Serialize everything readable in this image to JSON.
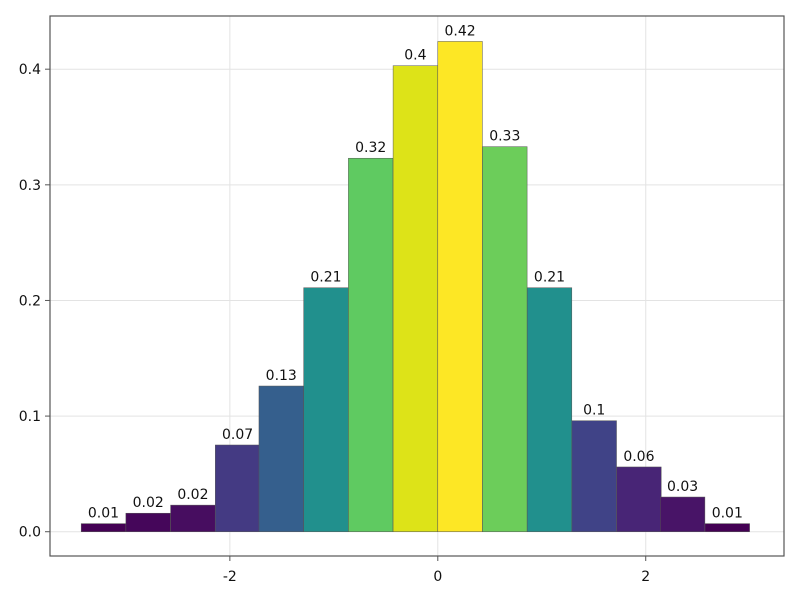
{
  "chart_data": {
    "type": "bar",
    "title": "",
    "xlabel": "",
    "ylabel": "",
    "xlim": [
      -3.73,
      3.33
    ],
    "ylim": [
      -0.021,
      0.446
    ],
    "grid": true,
    "x_ticks": [
      -2,
      0,
      2
    ],
    "y_ticks": [
      0.0,
      0.1,
      0.2,
      0.3,
      0.4
    ],
    "x_tick_labels": [
      "-2",
      "0",
      "2"
    ],
    "y_tick_labels": [
      "0.0",
      "0.1",
      "0.2",
      "0.3",
      "0.4"
    ],
    "bin_width": 0.429,
    "bins": [
      {
        "x0": -3.43,
        "value": 0.007,
        "label": "0.01",
        "color": "#440154"
      },
      {
        "x0": -3.0,
        "value": 0.016,
        "label": "0.02",
        "color": "#45065a"
      },
      {
        "x0": -2.57,
        "value": 0.023,
        "label": "0.02",
        "color": "#470d60"
      },
      {
        "x0": -2.14,
        "value": 0.075,
        "label": "0.07",
        "color": "#443a83"
      },
      {
        "x0": -1.72,
        "value": 0.126,
        "label": "0.13",
        "color": "#355f8d"
      },
      {
        "x0": -1.29,
        "value": 0.211,
        "label": "0.21",
        "color": "#21908d"
      },
      {
        "x0": -0.86,
        "value": 0.323,
        "label": "0.32",
        "color": "#5fca61"
      },
      {
        "x0": -0.43,
        "value": 0.403,
        "label": "0.4",
        "color": "#dde318"
      },
      {
        "x0": 0.0,
        "value": 0.424,
        "label": "0.42",
        "color": "#fde725"
      },
      {
        "x0": 0.43,
        "value": 0.333,
        "label": "0.33",
        "color": "#6ccd5a"
      },
      {
        "x0": 0.86,
        "value": 0.211,
        "label": "0.21",
        "color": "#21908d"
      },
      {
        "x0": 1.29,
        "value": 0.096,
        "label": "0.1",
        "color": "#404387"
      },
      {
        "x0": 1.72,
        "value": 0.056,
        "label": "0.06",
        "color": "#482576"
      },
      {
        "x0": 2.14,
        "value": 0.03,
        "label": "0.03",
        "color": "#481467"
      },
      {
        "x0": 2.57,
        "value": 0.007,
        "label": "0.01",
        "color": "#440154"
      }
    ],
    "colors": {
      "frame": "#555555",
      "grid": "#e3e3e3",
      "bar_stroke": "#555555",
      "tick": "#555555"
    }
  }
}
